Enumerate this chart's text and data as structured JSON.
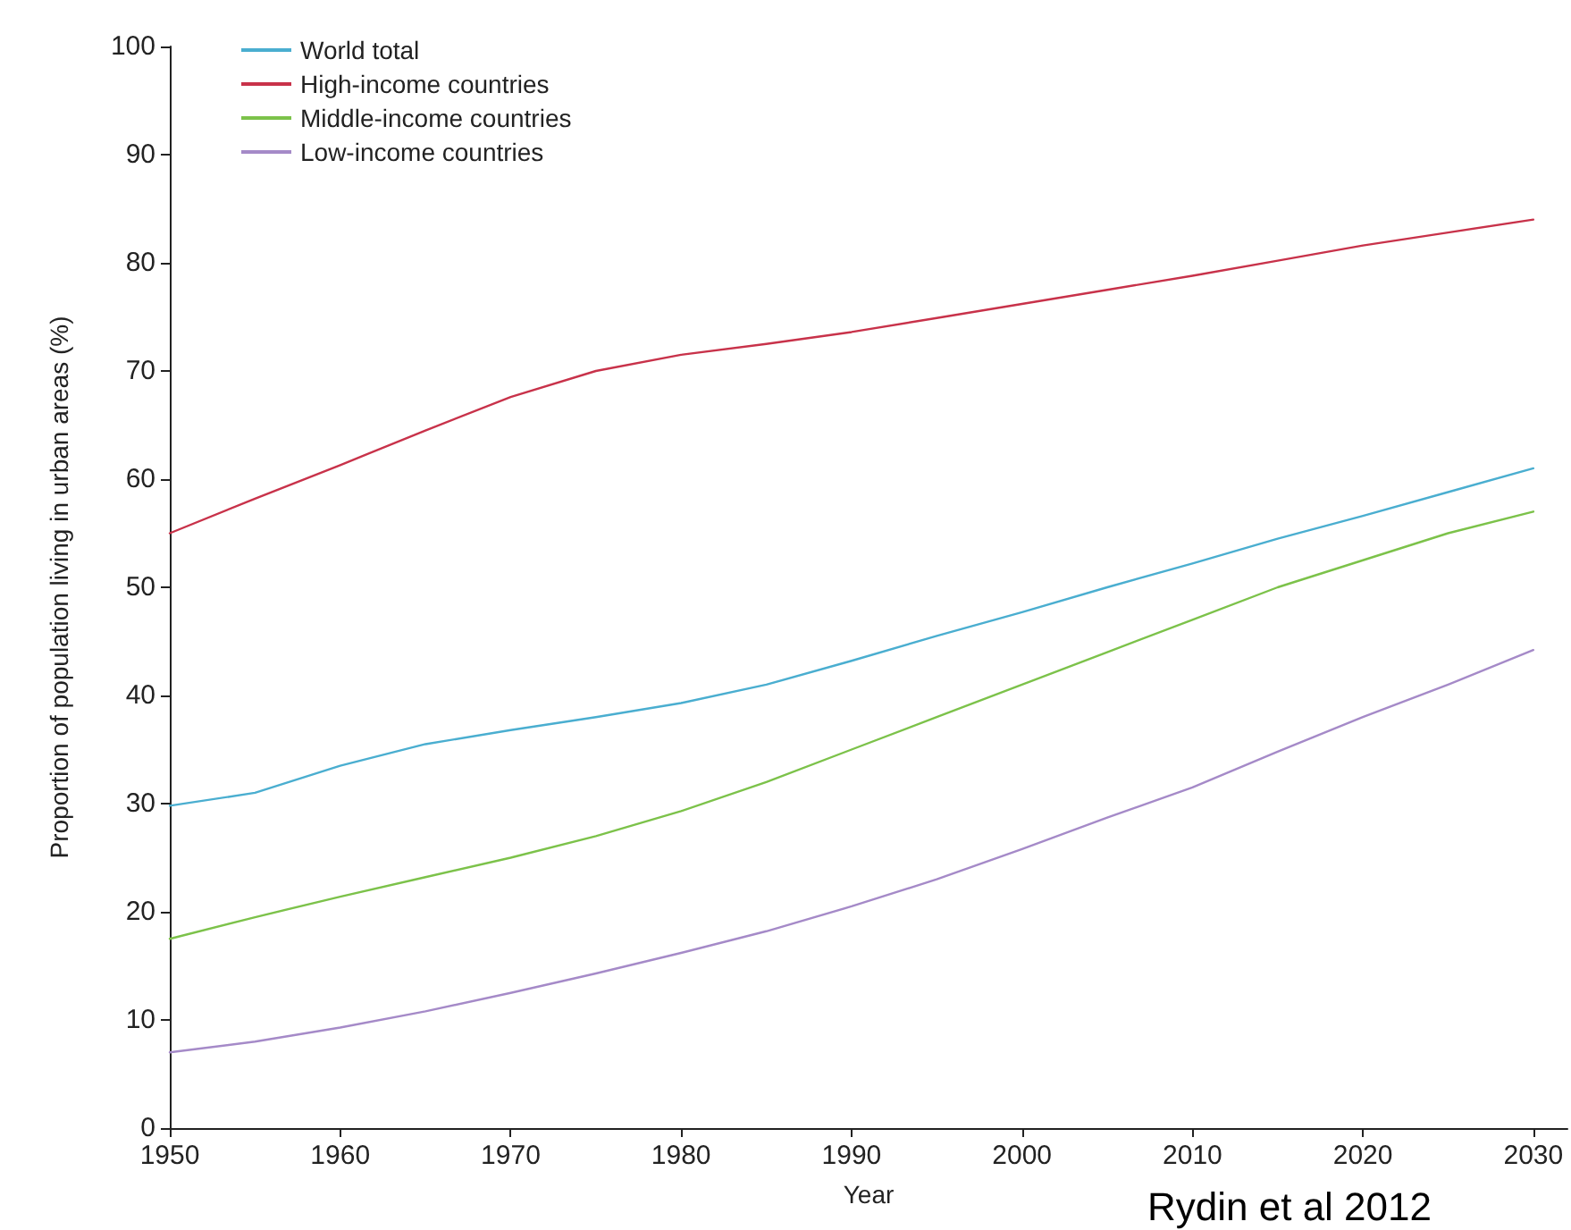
{
  "chart_data": {
    "type": "line",
    "xlabel": "Year",
    "ylabel": "Proportion of population living in urban areas (%)",
    "annotations": [
      "Rydin et al 2012"
    ],
    "x": [
      1950,
      1955,
      1960,
      1965,
      1970,
      1975,
      1980,
      1985,
      1990,
      1995,
      2000,
      2005,
      2010,
      2015,
      2020,
      2025,
      2030
    ],
    "series": [
      {
        "name": "World total",
        "color": "#4aaed0",
        "values": [
          29.8,
          31,
          33.5,
          35.5,
          36.8,
          38,
          39.3,
          41,
          43.2,
          45.5,
          47.7,
          50,
          52.2,
          54.5,
          56.6,
          58.8,
          61
        ]
      },
      {
        "name": "High-income countries",
        "color": "#c8324a",
        "values": [
          55,
          58.2,
          61.3,
          64.5,
          67.6,
          70,
          71.5,
          72.5,
          73.6,
          74.9,
          76.2,
          77.5,
          78.8,
          80.2,
          81.6,
          82.8,
          84
        ]
      },
      {
        "name": "Middle-income countries",
        "color": "#7cc24a",
        "values": [
          17.5,
          19.5,
          21.4,
          23.2,
          25,
          27,
          29.3,
          32,
          35,
          38,
          41,
          44,
          47,
          50,
          52.5,
          55,
          57
        ]
      },
      {
        "name": "Low-income countries",
        "color": "#a58ac8",
        "values": [
          7,
          8,
          9.3,
          10.8,
          12.5,
          14.3,
          16.2,
          18.2,
          20.5,
          23,
          25.8,
          28.7,
          31.5,
          34.8,
          38,
          41,
          44.2
        ]
      }
    ],
    "xlim": [
      1950,
      2032
    ],
    "xticks": [
      1950,
      1960,
      1970,
      1980,
      1990,
      2000,
      2010,
      2020,
      2030
    ],
    "ylim": [
      0,
      100
    ],
    "yticks": [
      0,
      10,
      20,
      30,
      40,
      50,
      60,
      70,
      80,
      90,
      100
    ],
    "grid": false,
    "legend": "top left",
    "marker": "none",
    "line_style": "solid"
  }
}
